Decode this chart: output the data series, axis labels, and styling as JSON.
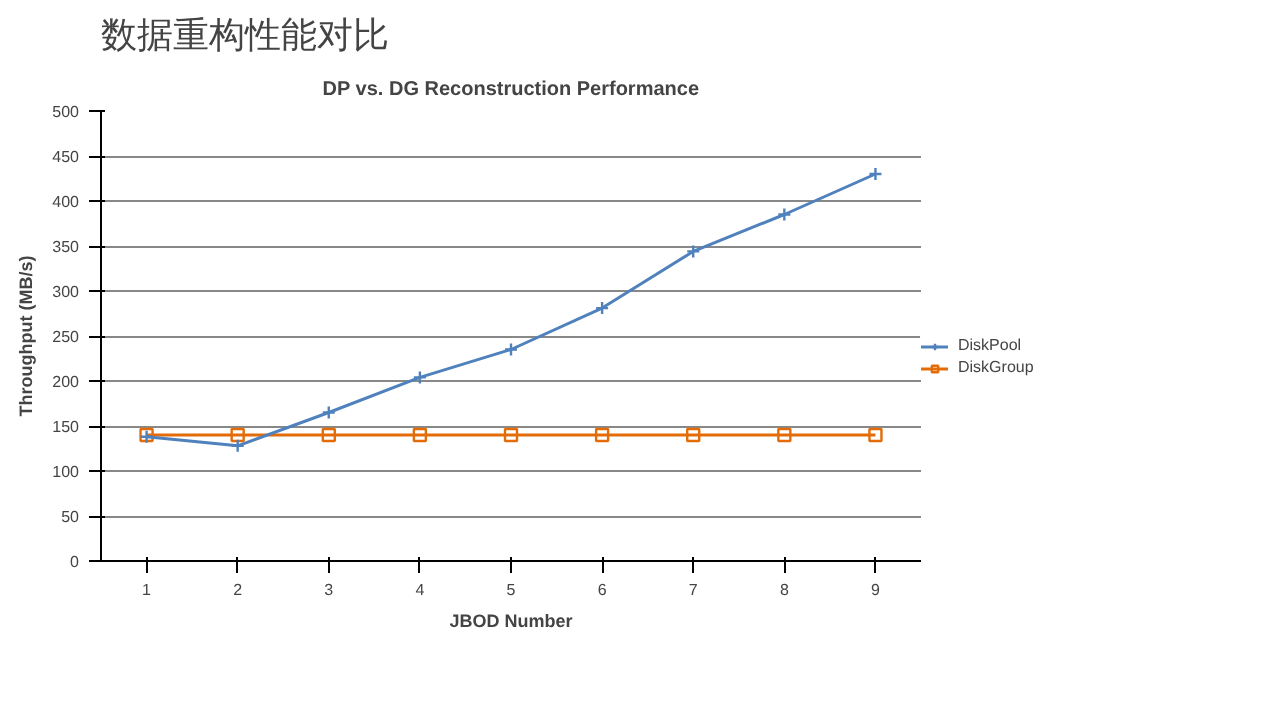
{
  "chart_data": {
    "type": "line",
    "title": "数据重构性能对比",
    "subtitle": "DP vs. DG Reconstruction Performance",
    "xlabel": "JBOD Number",
    "ylabel": "Throughput (MB/s)",
    "categories": [
      "1",
      "2",
      "3",
      "4",
      "5",
      "6",
      "7",
      "8",
      "9"
    ],
    "series": [
      {
        "name": "DiskPool",
        "color": "#4f81bd",
        "marker": "cross",
        "values": [
          138,
          128,
          165,
          204,
          235,
          281,
          344,
          385,
          430
        ]
      },
      {
        "name": "DiskGroup",
        "color": "#e36c09",
        "marker": "square",
        "values": [
          140,
          140,
          140,
          140,
          140,
          140,
          140,
          140,
          140
        ]
      }
    ],
    "ylim": [
      0,
      500
    ],
    "yticks": [
      0,
      50,
      100,
      150,
      200,
      250,
      300,
      350,
      400,
      450,
      500
    ],
    "grid": "y",
    "legend": "right"
  }
}
